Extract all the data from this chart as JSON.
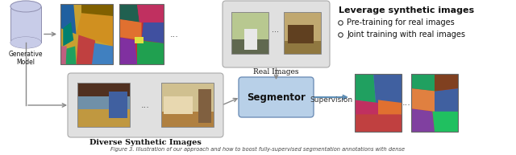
{
  "background_color": "#ffffff",
  "gen_model_label": "Generative\nModel",
  "real_images_label": "Real Images",
  "diverse_synth_label": "Diverse Synthetic Images",
  "segmentor_label": "Segmentor",
  "supervision_label": "Supervision",
  "leverage_title": "Leverage synthetic images",
  "bullet1": "Pre-training for real images",
  "bullet2": "Joint training with real images",
  "dots": "...",
  "caption": "Figure 3. Illustration of our approach and how to boost fully-supervised segmentation annotations with dense",
  "cyl_color": "#c8cce8",
  "cyl_edge": "#9090b0",
  "seg1_colors": [
    "#c8a040",
    "#c04040",
    "#20a060",
    "#d09030",
    "#2060a0",
    "#008080",
    "#e06080",
    "#806000",
    "#4080c0"
  ],
  "seg2_colors": [
    "#c03030",
    "#8030a0",
    "#20a050",
    "#e07030",
    "#4050a0",
    "#206050",
    "#c03060",
    "#503000",
    "#5090b0"
  ],
  "ann1_colors": [
    "#40a0c0",
    "#c04040",
    "#208030",
    "#e07030",
    "#4060a0",
    "#c03060",
    "#a0c040",
    "#808000",
    "#204080"
  ],
  "ann2_colors": [
    "#c04040",
    "#8040a0",
    "#20a060",
    "#e08040",
    "#4060a0",
    "#20c060",
    "#804020",
    "#60a0c0",
    "#c06020"
  ],
  "real_box_color": "#e0e0e0",
  "real_box_edge": "#aaaaaa",
  "div_box_color": "#e0e0e0",
  "div_box_edge": "#aaaaaa",
  "seg_box_color": "#b8d0e8",
  "seg_box_edge": "#7090b8",
  "arrow_color": "#888888",
  "sup_arrow_color": "#6090b8"
}
